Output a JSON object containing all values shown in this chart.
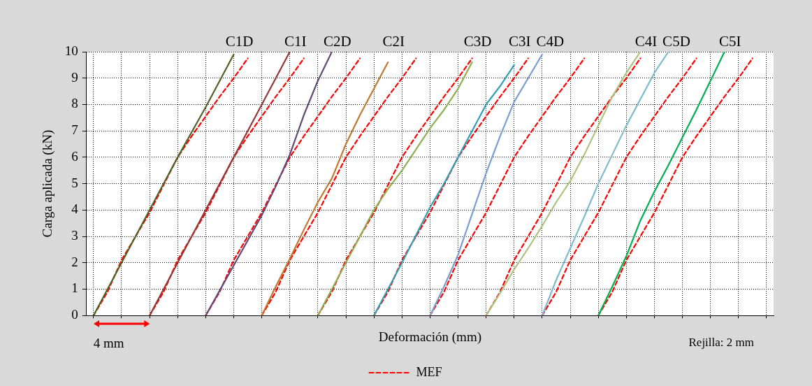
{
  "chart_data": {
    "type": "line",
    "xlabel": "Deformación (mm)",
    "ylabel": "Carga aplicada (kN)",
    "categories": [
      null,
      null,
      null,
      null,
      null,
      null,
      null,
      null,
      null,
      null,
      null,
      null,
      null,
      null,
      null,
      null,
      null,
      null,
      null,
      null,
      null,
      null,
      null,
      null,
      null,
      null,
      null,
      null,
      null,
      null,
      null,
      null,
      null,
      null,
      null,
      null,
      null,
      null,
      null,
      null,
      null,
      null,
      null,
      null,
      null,
      null,
      null,
      null,
      null
    ],
    "ylim": [
      0,
      10
    ],
    "yticks": [
      0,
      1,
      2,
      3,
      4,
      5,
      6,
      7,
      8,
      9,
      10
    ],
    "grid": true,
    "legend": "bottom",
    "tick_labels": "y",
    "marker": "none",
    "annotations": [
      "4 mm",
      "Rejilla: 2 mm"
    ],
    "series": [
      {
        "name": "C1D",
        "color": "#4f6228",
        "values": [
          0,
          1,
          2,
          3,
          4,
          5,
          6,
          6.95,
          7.9,
          8.9,
          9.9,
          null,
          null,
          null,
          null,
          null,
          null,
          null,
          null,
          null,
          null,
          null,
          null,
          null,
          null,
          null,
          null,
          null,
          null,
          null,
          null,
          null,
          null,
          null,
          null,
          null,
          null,
          null,
          null,
          null,
          null,
          null,
          null,
          null,
          null,
          null,
          null,
          null,
          null
        ]
      },
      {
        "name": "C1I",
        "color": "#953735",
        "values": [
          null,
          null,
          null,
          null,
          0,
          1,
          2,
          3,
          4,
          5,
          6,
          7,
          8,
          9,
          10,
          null,
          null,
          null,
          null,
          null,
          null,
          null,
          null,
          null,
          null,
          null,
          null,
          null,
          null,
          null,
          null,
          null,
          null,
          null,
          null,
          null,
          null,
          null,
          null,
          null,
          null,
          null,
          null,
          null,
          null,
          null,
          null,
          null,
          null
        ]
      },
      {
        "name": "C2D",
        "color": "#604a7b",
        "values": [
          null,
          null,
          null,
          null,
          null,
          null,
          null,
          null,
          0,
          0.95,
          1.9,
          2.85,
          3.8,
          4.9,
          6.1,
          7.6,
          8.9,
          10,
          null,
          null,
          null,
          null,
          null,
          null,
          null,
          null,
          null,
          null,
          null,
          null,
          null,
          null,
          null,
          null,
          null,
          null,
          null,
          null,
          null,
          null,
          null,
          null,
          null,
          null,
          null,
          null,
          null,
          null,
          null
        ]
      },
      {
        "name": "C2I",
        "color": "#c0782f",
        "values": [
          null,
          null,
          null,
          null,
          null,
          null,
          null,
          null,
          null,
          null,
          null,
          null,
          0,
          1.1,
          2.15,
          3.25,
          4.3,
          5.2,
          6.5,
          7.6,
          8.6,
          9.6,
          null,
          null,
          null,
          null,
          null,
          null,
          null,
          null,
          null,
          null,
          null,
          null,
          null,
          null,
          null,
          null,
          null,
          null,
          null,
          null,
          null,
          null,
          null,
          null,
          null,
          null,
          null
        ]
      },
      {
        "name": "C3D",
        "color": "#8db050",
        "values": [
          null,
          null,
          null,
          null,
          null,
          null,
          null,
          null,
          null,
          null,
          null,
          null,
          null,
          null,
          null,
          null,
          0,
          1,
          2,
          3,
          4,
          4.8,
          5.5,
          6.3,
          7.1,
          7.8,
          8.6,
          9.6,
          null,
          null,
          null,
          null,
          null,
          null,
          null,
          null,
          null,
          null,
          null,
          null,
          null,
          null,
          null,
          null,
          null,
          null,
          null,
          null,
          null
        ]
      },
      {
        "name": "C3I",
        "color": "#31a0b5",
        "values": [
          null,
          null,
          null,
          null,
          null,
          null,
          null,
          null,
          null,
          null,
          null,
          null,
          null,
          null,
          null,
          null,
          null,
          null,
          null,
          null,
          0,
          1,
          2,
          3.05,
          4.1,
          5,
          6,
          7,
          8,
          8.7,
          9.5,
          null,
          null,
          null,
          null,
          null,
          null,
          null,
          null,
          null,
          null,
          null,
          null,
          null,
          null,
          null,
          null,
          null,
          null
        ]
      },
      {
        "name": "C4D",
        "color": "#7b9ed0",
        "values": [
          null,
          null,
          null,
          null,
          null,
          null,
          null,
          null,
          null,
          null,
          null,
          null,
          null,
          null,
          null,
          null,
          null,
          null,
          null,
          null,
          null,
          null,
          null,
          null,
          0,
          1.1,
          2.3,
          3.85,
          5.4,
          6.8,
          8.1,
          9,
          9.9,
          null,
          null,
          null,
          null,
          null,
          null,
          null,
          null,
          null,
          null,
          null,
          null,
          null,
          null,
          null,
          null
        ]
      },
      {
        "name": "C4I",
        "color": "#a9c47f",
        "values": [
          null,
          null,
          null,
          null,
          null,
          null,
          null,
          null,
          null,
          null,
          null,
          null,
          null,
          null,
          null,
          null,
          null,
          null,
          null,
          null,
          null,
          null,
          null,
          null,
          null,
          null,
          null,
          null,
          0,
          0.85,
          1.75,
          2.55,
          3.4,
          4.3,
          5.1,
          6.1,
          7.2,
          8.3,
          9.2,
          10,
          null,
          null,
          null,
          null,
          null,
          null,
          null,
          null,
          null
        ]
      },
      {
        "name": "C5D",
        "color": "#7ebad2",
        "values": [
          null,
          null,
          null,
          null,
          null,
          null,
          null,
          null,
          null,
          null,
          null,
          null,
          null,
          null,
          null,
          null,
          null,
          null,
          null,
          null,
          null,
          null,
          null,
          null,
          null,
          null,
          null,
          null,
          null,
          null,
          null,
          null,
          0,
          1.35,
          2.55,
          3.75,
          5,
          6.1,
          7.2,
          8.2,
          9.2,
          10,
          null,
          null,
          null,
          null,
          null,
          null,
          null
        ]
      },
      {
        "name": "C5I",
        "color": "#00b050",
        "values": [
          null,
          null,
          null,
          null,
          null,
          null,
          null,
          null,
          null,
          null,
          null,
          null,
          null,
          null,
          null,
          null,
          null,
          null,
          null,
          null,
          null,
          null,
          null,
          null,
          null,
          null,
          null,
          null,
          null,
          null,
          null,
          null,
          null,
          null,
          null,
          null,
          0,
          1.1,
          2.25,
          3.6,
          4.7,
          5.7,
          6.75,
          7.8,
          8.9,
          10,
          null,
          null,
          null
        ]
      },
      {
        "name": "MEF",
        "color": "#ff0000",
        "line_style": "dashed",
        "values": [
          0,
          0.9,
          2.1,
          3,
          3.9,
          4.95,
          6,
          6.8,
          7.55,
          8.3,
          9,
          9.75,
          null,
          null,
          null,
          null,
          null,
          null,
          null,
          null,
          null,
          null,
          null,
          null,
          null,
          null,
          null,
          null,
          null,
          null,
          null,
          null,
          null,
          null,
          null,
          null,
          null,
          null,
          null,
          null,
          null,
          null,
          null,
          null,
          null,
          null,
          null,
          null,
          null
        ]
      },
      {
        "color": "#ff0000",
        "line_style": "dashed",
        "values": [
          null,
          null,
          null,
          null,
          0,
          0.9,
          2.1,
          3,
          3.9,
          4.95,
          6,
          6.8,
          7.55,
          8.3,
          9,
          9.75,
          null,
          null,
          null,
          null,
          null,
          null,
          null,
          null,
          null,
          null,
          null,
          null,
          null,
          null,
          null,
          null,
          null,
          null,
          null,
          null,
          null,
          null,
          null,
          null,
          null,
          null,
          null,
          null,
          null,
          null,
          null,
          null,
          null
        ]
      },
      {
        "color": "#ff0000",
        "line_style": "dashed",
        "values": [
          null,
          null,
          null,
          null,
          null,
          null,
          null,
          null,
          0,
          0.9,
          2.1,
          3,
          3.9,
          4.95,
          6,
          6.8,
          7.55,
          8.3,
          9,
          9.75,
          null,
          null,
          null,
          null,
          null,
          null,
          null,
          null,
          null,
          null,
          null,
          null,
          null,
          null,
          null,
          null,
          null,
          null,
          null,
          null,
          null,
          null,
          null,
          null,
          null,
          null,
          null,
          null,
          null
        ]
      },
      {
        "color": "#ff0000",
        "line_style": "dashed",
        "values": [
          null,
          null,
          null,
          null,
          null,
          null,
          null,
          null,
          null,
          null,
          null,
          null,
          0,
          0.9,
          2.1,
          3,
          3.9,
          4.95,
          6,
          6.8,
          7.55,
          8.3,
          9,
          9.75,
          null,
          null,
          null,
          null,
          null,
          null,
          null,
          null,
          null,
          null,
          null,
          null,
          null,
          null,
          null,
          null,
          null,
          null,
          null,
          null,
          null,
          null,
          null,
          null,
          null
        ]
      },
      {
        "color": "#ff0000",
        "line_style": "dashed",
        "values": [
          null,
          null,
          null,
          null,
          null,
          null,
          null,
          null,
          null,
          null,
          null,
          null,
          null,
          null,
          null,
          null,
          0,
          0.9,
          2.1,
          3,
          3.9,
          4.95,
          6,
          6.8,
          7.55,
          8.3,
          9,
          9.75,
          null,
          null,
          null,
          null,
          null,
          null,
          null,
          null,
          null,
          null,
          null,
          null,
          null,
          null,
          null,
          null,
          null,
          null,
          null,
          null,
          null
        ]
      },
      {
        "color": "#ff0000",
        "line_style": "dashed",
        "values": [
          null,
          null,
          null,
          null,
          null,
          null,
          null,
          null,
          null,
          null,
          null,
          null,
          null,
          null,
          null,
          null,
          null,
          null,
          null,
          null,
          0,
          0.9,
          2.1,
          3,
          3.9,
          4.95,
          6,
          6.8,
          7.55,
          8.3,
          9,
          9.75,
          null,
          null,
          null,
          null,
          null,
          null,
          null,
          null,
          null,
          null,
          null,
          null,
          null,
          null,
          null,
          null,
          null
        ]
      },
      {
        "color": "#ff0000",
        "line_style": "dashed",
        "values": [
          null,
          null,
          null,
          null,
          null,
          null,
          null,
          null,
          null,
          null,
          null,
          null,
          null,
          null,
          null,
          null,
          null,
          null,
          null,
          null,
          null,
          null,
          null,
          null,
          0,
          0.9,
          2.1,
          3,
          3.9,
          4.95,
          6,
          6.8,
          7.55,
          8.3,
          9,
          9.75,
          null,
          null,
          null,
          null,
          null,
          null,
          null,
          null,
          null,
          null,
          null,
          null,
          null
        ]
      },
      {
        "color": "#ff0000",
        "line_style": "dashed",
        "values": [
          null,
          null,
          null,
          null,
          null,
          null,
          null,
          null,
          null,
          null,
          null,
          null,
          null,
          null,
          null,
          null,
          null,
          null,
          null,
          null,
          null,
          null,
          null,
          null,
          null,
          null,
          null,
          null,
          0,
          0.9,
          2.1,
          3,
          3.9,
          4.95,
          6,
          6.8,
          7.55,
          8.3,
          9,
          9.75,
          null,
          null,
          null,
          null,
          null,
          null,
          null,
          null,
          null
        ]
      },
      {
        "color": "#ff0000",
        "line_style": "dashed",
        "values": [
          null,
          null,
          null,
          null,
          null,
          null,
          null,
          null,
          null,
          null,
          null,
          null,
          null,
          null,
          null,
          null,
          null,
          null,
          null,
          null,
          null,
          null,
          null,
          null,
          null,
          null,
          null,
          null,
          null,
          null,
          null,
          null,
          0,
          0.9,
          2.1,
          3,
          3.9,
          4.95,
          6,
          6.8,
          7.55,
          8.3,
          9,
          9.75,
          null,
          null,
          null,
          null,
          null
        ]
      },
      {
        "color": "#ff0000",
        "line_style": "dashed",
        "values": [
          null,
          null,
          null,
          null,
          null,
          null,
          null,
          null,
          null,
          null,
          null,
          null,
          null,
          null,
          null,
          null,
          null,
          null,
          null,
          null,
          null,
          null,
          null,
          null,
          null,
          null,
          null,
          null,
          null,
          null,
          null,
          null,
          null,
          null,
          null,
          null,
          0,
          0.9,
          2.1,
          3,
          3.9,
          4.95,
          6,
          6.8,
          7.55,
          8.3,
          9,
          9.75,
          null
        ]
      }
    ]
  }
}
